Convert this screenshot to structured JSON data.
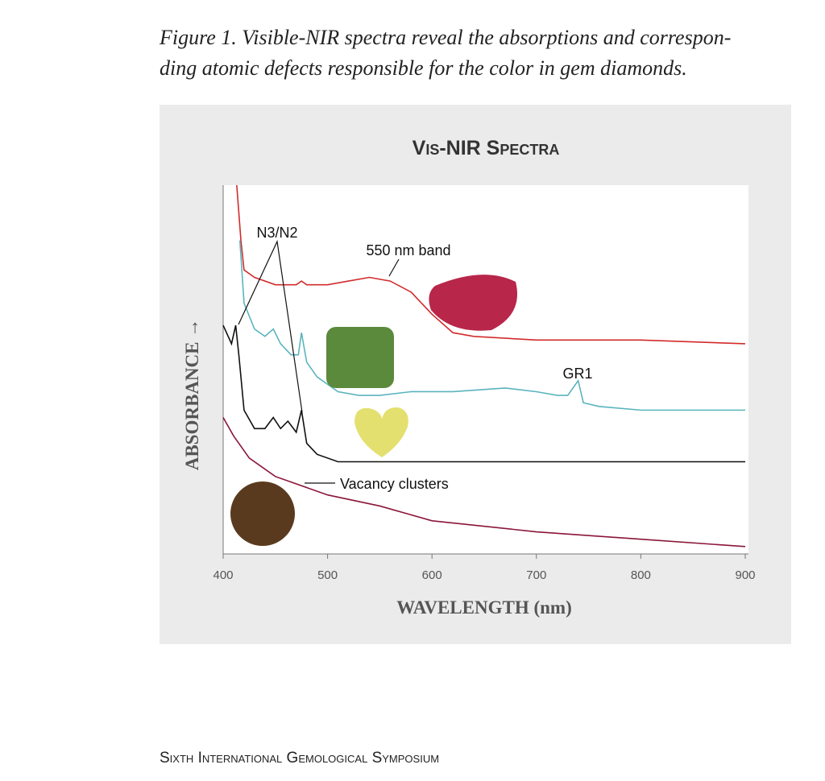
{
  "caption": [
    "Figure 1. Visible-NIR spectra reveal the absorptions and correspon-",
    "ding atomic defects responsible for the color in gem diamonds."
  ],
  "footer": "Sixth International Gemological Symposium",
  "chart_data": {
    "type": "line",
    "title": "Vis-NIR Spectra",
    "x_label": "WAVELENGTH (nm)",
    "y_label": "ABSORBANCE →",
    "xlim": [
      400,
      900
    ],
    "xticks": [
      400,
      500,
      600,
      700,
      800,
      900
    ],
    "ylim": [
      0,
      1
    ],
    "annotations": [
      "N3/N2",
      "550 nm band",
      "GR1",
      "Vacancy clusters"
    ],
    "series": [
      {
        "color": "#d22b2b",
        "x": [
          413,
          417,
          420,
          430,
          450,
          470,
          475,
          480,
          500,
          520,
          540,
          560,
          580,
          600,
          620,
          640,
          700,
          800,
          900
        ],
        "values": [
          1.0,
          0.85,
          0.77,
          0.75,
          0.73,
          0.73,
          0.74,
          0.73,
          0.73,
          0.74,
          0.75,
          0.74,
          0.71,
          0.65,
          0.6,
          0.59,
          0.58,
          0.58,
          0.57
        ]
      },
      {
        "color": "#5ab4be",
        "x": [
          416,
          420,
          430,
          440,
          448,
          455,
          465,
          472,
          475,
          480,
          490,
          510,
          530,
          550,
          580,
          620,
          670,
          700,
          720,
          730,
          740,
          745,
          760,
          800,
          900
        ],
        "values": [
          0.85,
          0.68,
          0.61,
          0.59,
          0.61,
          0.57,
          0.54,
          0.54,
          0.6,
          0.52,
          0.48,
          0.44,
          0.43,
          0.43,
          0.44,
          0.44,
          0.45,
          0.44,
          0.43,
          0.43,
          0.47,
          0.41,
          0.4,
          0.39,
          0.39
        ]
      },
      {
        "color": "#111111",
        "x": [
          400,
          408,
          412,
          415,
          420,
          430,
          440,
          448,
          455,
          462,
          470,
          475,
          480,
          490,
          510,
          600,
          700,
          900
        ],
        "values": [
          0.62,
          0.57,
          0.62,
          0.54,
          0.39,
          0.34,
          0.34,
          0.37,
          0.34,
          0.36,
          0.33,
          0.39,
          0.3,
          0.27,
          0.25,
          0.25,
          0.25,
          0.25
        ]
      },
      {
        "color": "#8a1538",
        "x": [
          400,
          410,
          425,
          450,
          500,
          550,
          600,
          700,
          800,
          900
        ],
        "values": [
          0.37,
          0.32,
          0.26,
          0.21,
          0.16,
          0.13,
          0.09,
          0.06,
          0.04,
          0.02
        ]
      }
    ]
  }
}
